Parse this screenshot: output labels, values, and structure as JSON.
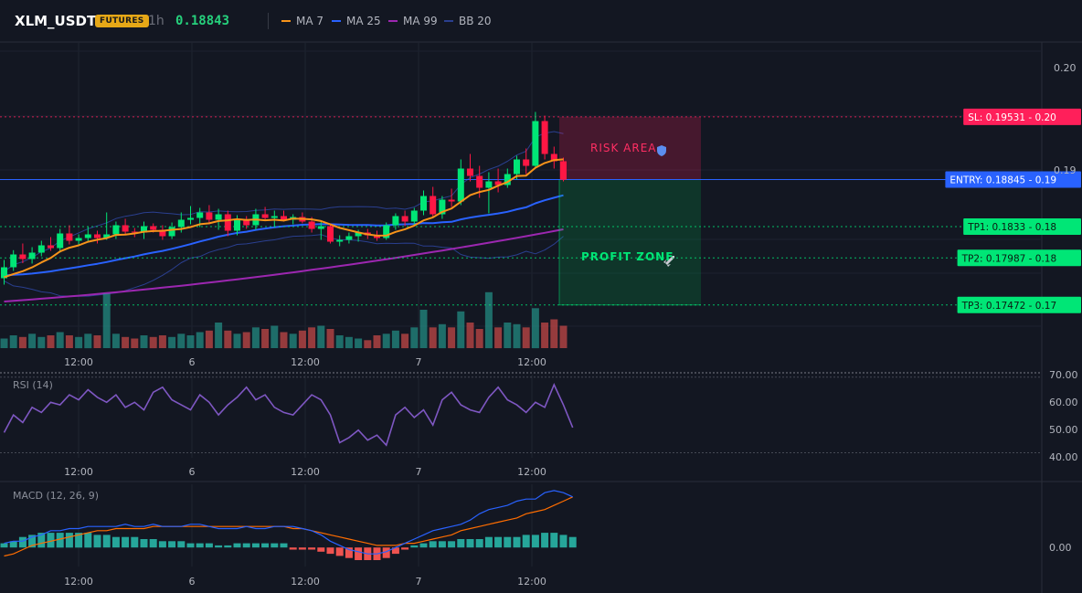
{
  "header": {
    "symbol": "XLM_USDT",
    "badge": "FUTURES",
    "timeframe": "1h",
    "last_price": "0.18843",
    "legend": [
      {
        "label": "MA 7",
        "color": "#f7931a"
      },
      {
        "label": "MA 25",
        "color": "#2962ff"
      },
      {
        "label": "MA 99",
        "color": "#9c27b0"
      },
      {
        "label": "BB 20",
        "color": "#2a3f8f"
      }
    ]
  },
  "colors": {
    "up": "#00e676",
    "down": "#ff1744",
    "vol_up": "#26a69a",
    "vol_down": "#ef5350",
    "ma7": "#f7931a",
    "ma25": "#2962ff",
    "ma99": "#9c27b0",
    "bb": "#2a3f8f",
    "rsi": "#7e57c2",
    "macd": "#2962ff",
    "signal": "#ff6d00",
    "sl": "#ff1f5a",
    "entry": "#2962ff",
    "tp": "#00e676"
  },
  "chart_data": {
    "type": "candlestick",
    "x_axis": {
      "tick_labels": [
        "12:00",
        "6",
        "12:00",
        "7",
        "12:00"
      ]
    },
    "price_axis": {
      "ylim": [
        0.17,
        0.2035
      ],
      "tick_labels": [
        "0.20",
        "0.19",
        "0.18",
        "0.18",
        "0.17"
      ]
    },
    "candles": [
      {
        "o": 0.17765,
        "h": 0.17965,
        "l": 0.17695,
        "c": 0.17885
      },
      {
        "o": 0.17885,
        "h": 0.18072,
        "l": 0.17845,
        "c": 0.18025
      },
      {
        "o": 0.18025,
        "h": 0.18145,
        "l": 0.1793,
        "c": 0.17975
      },
      {
        "o": 0.17975,
        "h": 0.18105,
        "l": 0.17925,
        "c": 0.18045
      },
      {
        "o": 0.18045,
        "h": 0.18175,
        "l": 0.18005,
        "c": 0.18125
      },
      {
        "o": 0.18125,
        "h": 0.18215,
        "l": 0.18065,
        "c": 0.18095
      },
      {
        "o": 0.18095,
        "h": 0.18305,
        "l": 0.18045,
        "c": 0.18255
      },
      {
        "o": 0.18255,
        "h": 0.18345,
        "l": 0.18135,
        "c": 0.18175
      },
      {
        "o": 0.18175,
        "h": 0.18245,
        "l": 0.18135,
        "c": 0.18205
      },
      {
        "o": 0.18205,
        "h": 0.18325,
        "l": 0.18155,
        "c": 0.18245
      },
      {
        "o": 0.18245,
        "h": 0.18285,
        "l": 0.18145,
        "c": 0.18205
      },
      {
        "o": 0.18205,
        "h": 0.18485,
        "l": 0.18185,
        "c": 0.18245
      },
      {
        "o": 0.18245,
        "h": 0.18385,
        "l": 0.18195,
        "c": 0.18345
      },
      {
        "o": 0.18345,
        "h": 0.18415,
        "l": 0.18235,
        "c": 0.18275
      },
      {
        "o": 0.18275,
        "h": 0.18315,
        "l": 0.18215,
        "c": 0.18265
      },
      {
        "o": 0.18265,
        "h": 0.18385,
        "l": 0.18195,
        "c": 0.18335
      },
      {
        "o": 0.18335,
        "h": 0.18365,
        "l": 0.18265,
        "c": 0.18295
      },
      {
        "o": 0.18295,
        "h": 0.18345,
        "l": 0.18185,
        "c": 0.18225
      },
      {
        "o": 0.18225,
        "h": 0.18375,
        "l": 0.18195,
        "c": 0.18325
      },
      {
        "o": 0.18325,
        "h": 0.18485,
        "l": 0.18265,
        "c": 0.18405
      },
      {
        "o": 0.18405,
        "h": 0.18555,
        "l": 0.18355,
        "c": 0.18425
      },
      {
        "o": 0.18425,
        "h": 0.18535,
        "l": 0.18325,
        "c": 0.18485
      },
      {
        "o": 0.18485,
        "h": 0.18565,
        "l": 0.18355,
        "c": 0.18405
      },
      {
        "o": 0.18405,
        "h": 0.18525,
        "l": 0.18295,
        "c": 0.18465
      },
      {
        "o": 0.18465,
        "h": 0.18505,
        "l": 0.18225,
        "c": 0.18285
      },
      {
        "o": 0.18285,
        "h": 0.18455,
        "l": 0.18235,
        "c": 0.18405
      },
      {
        "o": 0.18405,
        "h": 0.18445,
        "l": 0.18305,
        "c": 0.18345
      },
      {
        "o": 0.18345,
        "h": 0.18525,
        "l": 0.18295,
        "c": 0.18465
      },
      {
        "o": 0.18465,
        "h": 0.18545,
        "l": 0.18395,
        "c": 0.18425
      },
      {
        "o": 0.18425,
        "h": 0.18505,
        "l": 0.18325,
        "c": 0.18445
      },
      {
        "o": 0.18445,
        "h": 0.18505,
        "l": 0.18385,
        "c": 0.18405
      },
      {
        "o": 0.18405,
        "h": 0.18465,
        "l": 0.18355,
        "c": 0.18435
      },
      {
        "o": 0.18435,
        "h": 0.18485,
        "l": 0.18365,
        "c": 0.18385
      },
      {
        "o": 0.18385,
        "h": 0.18435,
        "l": 0.18265,
        "c": 0.18305
      },
      {
        "o": 0.18305,
        "h": 0.18385,
        "l": 0.18185,
        "c": 0.18335
      },
      {
        "o": 0.18335,
        "h": 0.18365,
        "l": 0.18145,
        "c": 0.18165
      },
      {
        "o": 0.18165,
        "h": 0.18235,
        "l": 0.18115,
        "c": 0.18185
      },
      {
        "o": 0.18185,
        "h": 0.18265,
        "l": 0.18145,
        "c": 0.18225
      },
      {
        "o": 0.18225,
        "h": 0.18295,
        "l": 0.18165,
        "c": 0.18265
      },
      {
        "o": 0.18265,
        "h": 0.18305,
        "l": 0.18195,
        "c": 0.18235
      },
      {
        "o": 0.18235,
        "h": 0.18285,
        "l": 0.18175,
        "c": 0.18205
      },
      {
        "o": 0.18205,
        "h": 0.18375,
        "l": 0.18185,
        "c": 0.18345
      },
      {
        "o": 0.18345,
        "h": 0.18475,
        "l": 0.18295,
        "c": 0.18445
      },
      {
        "o": 0.18445,
        "h": 0.18505,
        "l": 0.18335,
        "c": 0.18385
      },
      {
        "o": 0.18385,
        "h": 0.18535,
        "l": 0.18345,
        "c": 0.18505
      },
      {
        "o": 0.18505,
        "h": 0.18725,
        "l": 0.18455,
        "c": 0.18665
      },
      {
        "o": 0.18665,
        "h": 0.18765,
        "l": 0.18425,
        "c": 0.18465
      },
      {
        "o": 0.18465,
        "h": 0.18665,
        "l": 0.18415,
        "c": 0.18625
      },
      {
        "o": 0.18625,
        "h": 0.18745,
        "l": 0.18545,
        "c": 0.18605
      },
      {
        "o": 0.18605,
        "h": 0.19065,
        "l": 0.18565,
        "c": 0.18965
      },
      {
        "o": 0.18965,
        "h": 0.19125,
        "l": 0.18825,
        "c": 0.18885
      },
      {
        "o": 0.18885,
        "h": 0.18995,
        "l": 0.18645,
        "c": 0.18755
      },
      {
        "o": 0.18755,
        "h": 0.18925,
        "l": 0.18475,
        "c": 0.18825
      },
      {
        "o": 0.18825,
        "h": 0.18965,
        "l": 0.18705,
        "c": 0.18785
      },
      {
        "o": 0.18785,
        "h": 0.18965,
        "l": 0.18755,
        "c": 0.18905
      },
      {
        "o": 0.18905,
        "h": 0.19105,
        "l": 0.18845,
        "c": 0.19065
      },
      {
        "o": 0.19065,
        "h": 0.19185,
        "l": 0.18905,
        "c": 0.18995
      },
      {
        "o": 0.18995,
        "h": 0.19585,
        "l": 0.18965,
        "c": 0.19485
      },
      {
        "o": 0.19485,
        "h": 0.19545,
        "l": 0.19065,
        "c": 0.19125
      },
      {
        "o": 0.19125,
        "h": 0.19205,
        "l": 0.18965,
        "c": 0.19045
      },
      {
        "o": 0.19045,
        "h": 0.19085,
        "l": 0.18825,
        "c": 0.18843
      }
    ],
    "volume": [
      6,
      8,
      7,
      9,
      7,
      8,
      10,
      8,
      7,
      9,
      8,
      34,
      9,
      7,
      6,
      8,
      7,
      8,
      7,
      9,
      8,
      10,
      11,
      16,
      11,
      9,
      10,
      13,
      12,
      14,
      10,
      9,
      11,
      13,
      14,
      12,
      8,
      7,
      6,
      5,
      8,
      9,
      11,
      9,
      13,
      24,
      13,
      15,
      13,
      23,
      16,
      12,
      35,
      13,
      16,
      15,
      13,
      25,
      16,
      18,
      14
    ],
    "ma7_lookback": [
      0.1778,
      0.1776,
      0.1775,
      0.1775,
      0.1775,
      0.1776
    ],
    "ma25_lookback": [
      0.1785,
      0.1784,
      0.1783,
      0.1782,
      0.1781,
      0.1781,
      0.178,
      0.178,
      0.1779,
      0.1779,
      0.1779,
      0.1778,
      0.1778,
      0.1778,
      0.1778,
      0.1778,
      0.1777,
      0.1777,
      0.1777,
      0.1777,
      0.1777,
      0.1777,
      0.1777,
      0.1777
    ],
    "ma99_start": 0.1751,
    "ma99_end": 0.183,
    "rsi": {
      "name": "RSI (14)",
      "ylim": [
        38,
        71
      ],
      "tick_labels": [
        "70.00",
        "60.00",
        "50.00",
        "40.00"
      ],
      "values": [
        48,
        55,
        52,
        58,
        56,
        60,
        59,
        63,
        61,
        65,
        62,
        60,
        63,
        58,
        60,
        57,
        64,
        66,
        61,
        59,
        57,
        63,
        60,
        55,
        59,
        62,
        66,
        61,
        63,
        58,
        56,
        55,
        59,
        63,
        61,
        55,
        44,
        46,
        49,
        45,
        47,
        43,
        55,
        58,
        54,
        57,
        51,
        61,
        64,
        59,
        57,
        56,
        62,
        66,
        61,
        59,
        56,
        60,
        58,
        67,
        59,
        50
      ],
      "levels": [
        70,
        40
      ]
    },
    "macd": {
      "name": "MACD (12, 26, 9)",
      "ylim": [
        -0.0009,
        0.003
      ],
      "tick_labels": [
        "0.00"
      ],
      "macd": [
        0.0002,
        0.0003,
        0.0003,
        0.0005,
        0.0006,
        0.0008,
        0.0008,
        0.0009,
        0.0009,
        0.001,
        0.001,
        0.001,
        0.001,
        0.0011,
        0.001,
        0.001,
        0.0011,
        0.001,
        0.001,
        0.001,
        0.0011,
        0.0011,
        0.001,
        0.0009,
        0.0009,
        0.0009,
        0.001,
        0.0009,
        0.0009,
        0.001,
        0.001,
        0.001,
        0.0009,
        0.0008,
        0.0006,
        0.0003,
        0.0001,
        -0.0001,
        -0.0002,
        -0.0003,
        -0.0003,
        -0.0002,
        0.0,
        0.0002,
        0.0004,
        0.0006,
        0.0008,
        0.0009,
        0.001,
        0.0011,
        0.0013,
        0.0016,
        0.0018,
        0.0019,
        0.002,
        0.0022,
        0.0023,
        0.0023,
        0.0026,
        0.0027,
        0.0026,
        0.0024
      ],
      "signal": [
        -0.0004,
        -0.0003,
        -0.0001,
        0.0001,
        0.0002,
        0.0003,
        0.0004,
        0.0005,
        0.0006,
        0.0007,
        0.0008,
        0.0008,
        0.0009,
        0.0009,
        0.0009,
        0.0009,
        0.001,
        0.001,
        0.001,
        0.001,
        0.001,
        0.001,
        0.001,
        0.001,
        0.001,
        0.001,
        0.001,
        0.001,
        0.001,
        0.001,
        0.001,
        0.0009,
        0.0009,
        0.0008,
        0.0007,
        0.0006,
        0.0005,
        0.0004,
        0.0003,
        0.0002,
        0.0001,
        0.0001,
        0.0001,
        0.0002,
        0.0002,
        0.0003,
        0.0004,
        0.0005,
        0.0006,
        0.0008,
        0.0009,
        0.001,
        0.0011,
        0.0012,
        0.0013,
        0.0014,
        0.0016,
        0.0017,
        0.0018,
        0.002,
        0.0022,
        0.0024
      ],
      "hist": [
        0.0002,
        0.0003,
        0.0005,
        0.0006,
        0.0007,
        0.0007,
        0.0007,
        0.0007,
        0.0007,
        0.0007,
        0.0006,
        0.0006,
        0.0005,
        0.0005,
        0.0005,
        0.0004,
        0.0004,
        0.0003,
        0.0003,
        0.0003,
        0.0002,
        0.0002,
        0.0002,
        0.0001,
        0.0001,
        0.0002,
        0.0002,
        0.0002,
        0.0002,
        0.0002,
        0.0002,
        -0.0001,
        -0.0001,
        -0.0001,
        -0.0002,
        -0.0003,
        -0.0004,
        -0.0005,
        -0.0006,
        -0.0006,
        -0.0006,
        -0.0005,
        -0.0003,
        -0.0001,
        0.0001,
        0.0002,
        0.0003,
        0.0003,
        0.0003,
        0.0004,
        0.0004,
        0.0004,
        0.0005,
        0.0005,
        0.0005,
        0.0005,
        0.0006,
        0.0006,
        0.0007,
        0.0007,
        0.0006,
        0.0005
      ]
    },
    "levels": [
      {
        "kind": "sl",
        "label": "SL: 0.19531",
        "axis": "0.20",
        "value": 0.19531
      },
      {
        "kind": "entry",
        "label": "ENTRY: 0.18845",
        "axis": "0.19",
        "value": 0.18845
      },
      {
        "kind": "tp",
        "label": "TP1: 0.1833",
        "axis": "0.18",
        "value": 0.1833
      },
      {
        "kind": "tp",
        "label": "TP2: 0.17987",
        "axis": "0.18",
        "value": 0.17987
      },
      {
        "kind": "tp",
        "label": "TP3: 0.17472",
        "axis": "0.17",
        "value": 0.17472
      }
    ],
    "zones": [
      {
        "label": "RISK AREA",
        "icon": "shield-icon",
        "from": 0.18845,
        "to": 0.19531
      },
      {
        "label": "PROFIT ZONE",
        "icon": "rocket-icon",
        "from": 0.17472,
        "to": 0.18845
      }
    ]
  }
}
